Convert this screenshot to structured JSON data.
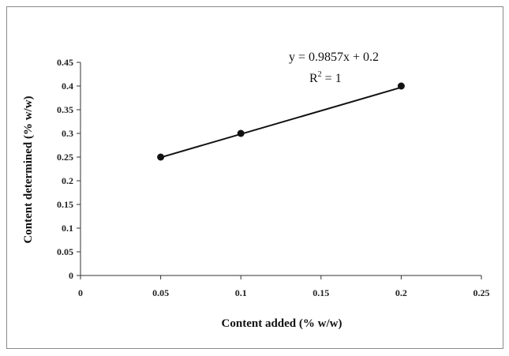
{
  "chart_data": {
    "type": "scatter",
    "title": "",
    "xlabel": "Content added (% w/w)",
    "ylabel": "Content determined (% w/w)",
    "xlim": [
      0,
      0.25
    ],
    "ylim": [
      0,
      0.45
    ],
    "xticks": [
      "0",
      "0.05",
      "0.1",
      "0.15",
      "0.2",
      "0.25"
    ],
    "yticks": [
      "0",
      "0.05",
      "0.1",
      "0.15",
      "0.2",
      "0.25",
      "0.3",
      "0.35",
      "0.4",
      "0.45"
    ],
    "grid": false,
    "legend": "none",
    "series": [
      {
        "x": [
          0.05,
          0.1,
          0.2
        ],
        "y": [
          0.25,
          0.3,
          0.4
        ],
        "marker": "circle",
        "color": "#111111"
      }
    ],
    "trendline": {
      "type": "linear",
      "slope": 0.9857,
      "intercept": 0.2,
      "x_range": [
        0.05,
        0.2
      ]
    },
    "annotations": {
      "equation": "y = 0.9857x + 0.2",
      "r2_prefix": "R",
      "r2_exponent": "2",
      "r2_suffix": " = 1"
    }
  }
}
